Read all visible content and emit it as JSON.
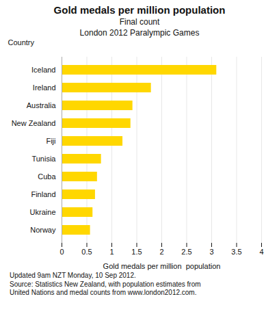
{
  "chart_data": {
    "type": "bar",
    "orientation": "horizontal",
    "title": "Gold medals per million population",
    "subtitle": [
      "Final count",
      "London 2012 Paralympic Games"
    ],
    "y_label": "Country",
    "x_label": "Gold medals per million  population",
    "caption": "Updated 9am NZT Monday, 10 Sep 2012.\nSource: Statistics New Zealand, with population estimates from\nUnited Nations and medal counts from www.london2012.com.",
    "categories": [
      "Norway",
      "Ukraine",
      "Finland",
      "Cuba",
      "Tunisia",
      "Fiji",
      "New Zealand",
      "Australia",
      "Ireland",
      "Iceland"
    ],
    "values": [
      0.57,
      0.62,
      0.67,
      0.71,
      0.79,
      1.22,
      1.38,
      1.42,
      1.79,
      3.1
    ],
    "color": "#FFD700",
    "xlim": [
      0,
      4
    ],
    "xticks": [
      0,
      0.5,
      1,
      1.5,
      2,
      2.5,
      3,
      3.5,
      4
    ],
    "grid": true
  }
}
